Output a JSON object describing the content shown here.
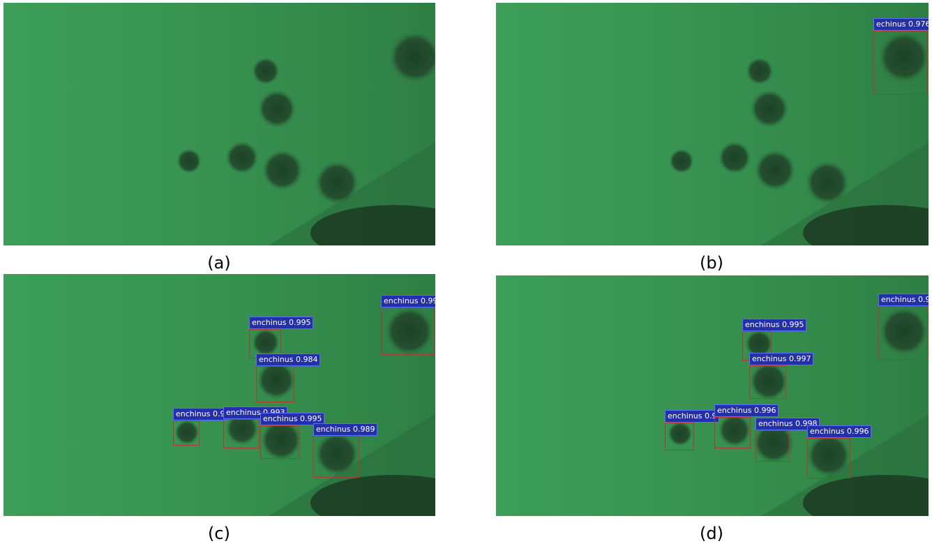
{
  "figure": {
    "panels": [
      {
        "caption": "(a)",
        "detections": []
      },
      {
        "caption": "(b)",
        "detections": [
          {
            "label": "echinus 0.976"
          }
        ]
      },
      {
        "caption": "(c)",
        "detections": [
          {
            "label": "enchinus 0.99"
          },
          {
            "label": "enchinus 0.995"
          },
          {
            "label": "enchinus 0.984"
          },
          {
            "label": "enchinus 0.9"
          },
          {
            "label": "enchinus 0.993"
          },
          {
            "label": "enchinus 0.995"
          },
          {
            "label": "enchinus 0.989"
          }
        ]
      },
      {
        "caption": "(d)",
        "detections": [
          {
            "label": "enchinus 0.9"
          },
          {
            "label": "enchinus 0.995"
          },
          {
            "label": "enchinus 0.997"
          },
          {
            "label": "enchinus 0.9"
          },
          {
            "label": "enchinus 0.996"
          },
          {
            "label": "enchinus 0.998"
          },
          {
            "label": "enchinus 0.996"
          }
        ]
      }
    ],
    "colors": {
      "water": "#3a9a55",
      "urchin": "#1e4a2a",
      "box_border": "#b0392a",
      "label_bg": "#2430a8",
      "label_text": "#ffffff"
    }
  }
}
